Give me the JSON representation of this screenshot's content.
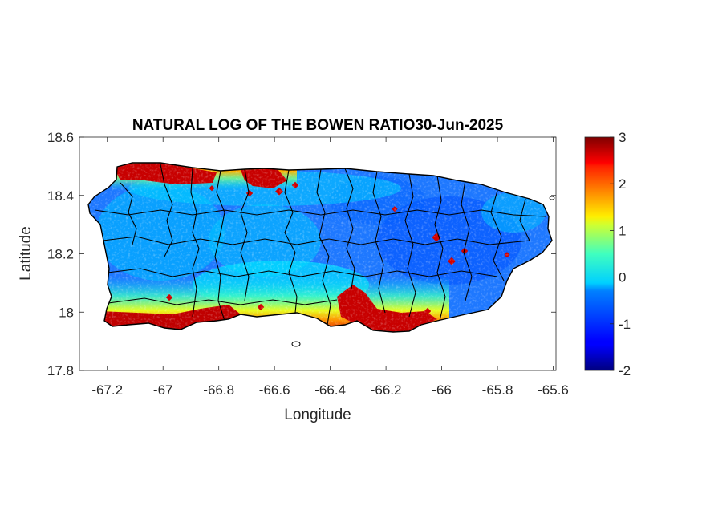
{
  "chart_data": {
    "type": "heatmap",
    "title": "NATURAL LOG OF THE BOWEN RATIO30-Jun-2025",
    "xlabel": "Longitude",
    "ylabel": "Latitude",
    "xlim": [
      -67.3,
      -65.59
    ],
    "ylim": [
      17.8,
      18.6
    ],
    "xticks": [
      -67.2,
      -67,
      -66.8,
      -66.6,
      -66.4,
      -66.2,
      -66,
      -65.8,
      -65.6
    ],
    "xtick_labels": [
      "-67.2",
      "-67",
      "-66.8",
      "-66.6",
      "-66.4",
      "-66.2",
      "-66",
      "-65.8",
      "-65.6"
    ],
    "yticks": [
      17.8,
      18,
      18.2,
      18.4,
      18.6
    ],
    "ytick_labels": [
      "17.8",
      "18",
      "18.2",
      "18.4",
      "18.6"
    ],
    "colorbar": {
      "colormap": "jet",
      "range": [
        -2,
        3
      ],
      "ticks": [
        -2,
        -1,
        0,
        1,
        2,
        3
      ],
      "tick_labels": [
        "-2",
        "-1",
        "0",
        "1",
        "2",
        "3"
      ]
    },
    "region": "Puerto Rico municipalities",
    "value_pattern": "High values (about 3) along north-west coast and southern coast; low values (about -1 to 0) across the interior and east"
  }
}
